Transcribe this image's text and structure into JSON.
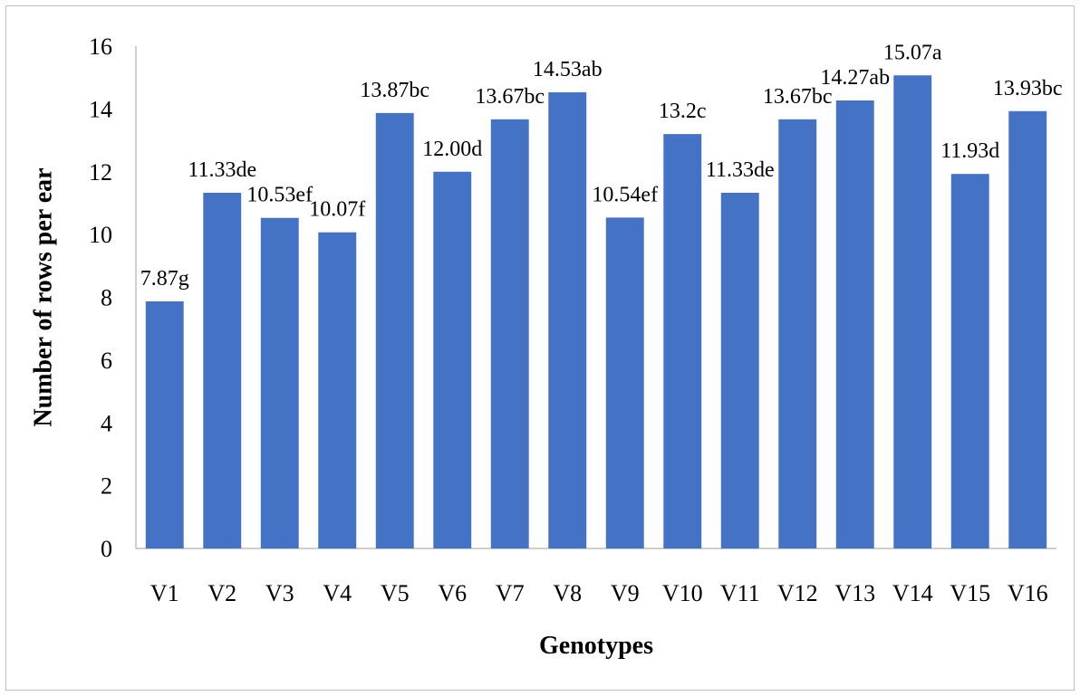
{
  "chart_data": {
    "type": "bar",
    "title": "",
    "xlabel": "Genotypes",
    "ylabel": "Number of rows per ear",
    "ylim": [
      0,
      16
    ],
    "yticks": [
      0,
      2,
      4,
      6,
      8,
      10,
      12,
      14,
      16
    ],
    "ytick_labels": [
      "0",
      "2",
      "4",
      "6",
      "8",
      "10",
      "12",
      "14",
      "16"
    ],
    "grid": false,
    "legend": "none",
    "bar_color": "#4472C4",
    "categories": [
      "V1",
      "V2",
      "V3",
      "V4",
      "V5",
      "V6",
      "V7",
      "V8",
      "V9",
      "V10",
      "V11",
      "V12",
      "V13",
      "V14",
      "V15",
      "V16"
    ],
    "values": [
      7.87,
      11.33,
      10.53,
      10.07,
      13.87,
      12.0,
      13.67,
      14.53,
      10.54,
      13.2,
      11.33,
      13.67,
      14.27,
      15.07,
      11.93,
      13.93
    ],
    "data_labels": [
      "7.87g",
      "11.33de",
      "10.53ef",
      "10.07f",
      "13.87bc",
      "12.00d",
      "13.67bc",
      "14.53ab",
      "10.54ef",
      "13.2c",
      "11.33de",
      "13.67bc",
      "14.27ab",
      "15.07a",
      "11.93d",
      "13.93bc"
    ]
  }
}
